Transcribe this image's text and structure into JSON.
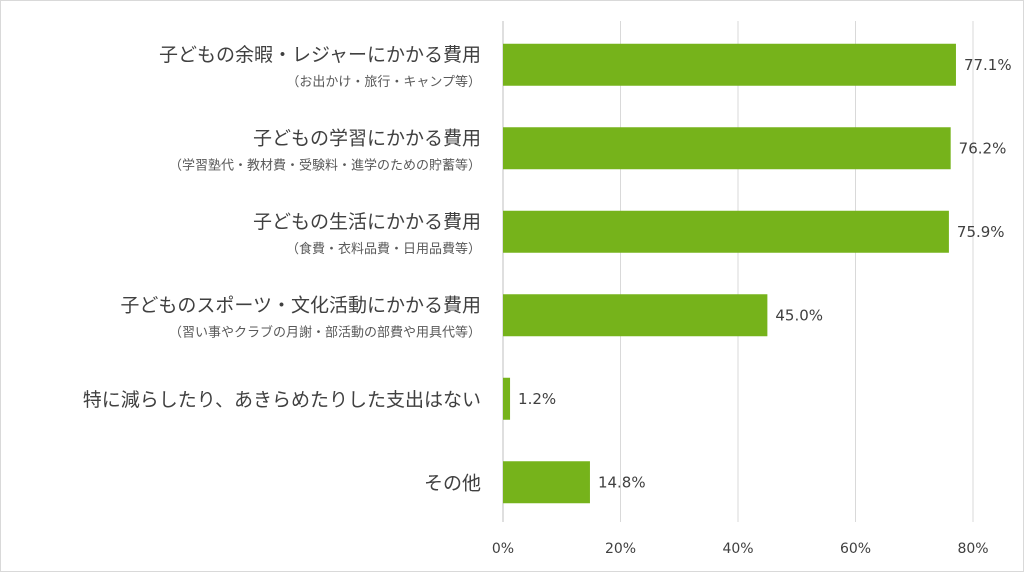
{
  "chart_data": {
    "type": "bar",
    "orientation": "horizontal",
    "categories": [
      "子どもの余暇・レジャーにかかる費用",
      "子どもの学習にかかる費用",
      "子どもの生活にかかる費用",
      "子どものスポーツ・文化活動にかかる費用",
      "特に減らしたり、あきらめたりした支出はない",
      "その他"
    ],
    "subcategories": [
      "（お出かけ・旅行・キャンプ等）",
      "（学習塾代・教材費・受験料・進学のための貯蓄等）",
      "（食費・衣料品費・日用品費等）",
      "（習い事やクラブの月謝・部活動の部費や用具代等）",
      "",
      ""
    ],
    "values": [
      77.1,
      76.2,
      75.9,
      45.0,
      1.2,
      14.8
    ],
    "data_labels": [
      "77.1%",
      "76.2%",
      "75.9%",
      "45.0%",
      "1.2%",
      "14.8%"
    ],
    "x_ticks": [
      0,
      20,
      40,
      60,
      80
    ],
    "x_tick_labels": [
      "0%",
      "20%",
      "40%",
      "60%",
      "80%"
    ],
    "xlim": [
      0,
      80
    ],
    "grid": true,
    "legend": "none",
    "bar_color": "#76b31b"
  }
}
